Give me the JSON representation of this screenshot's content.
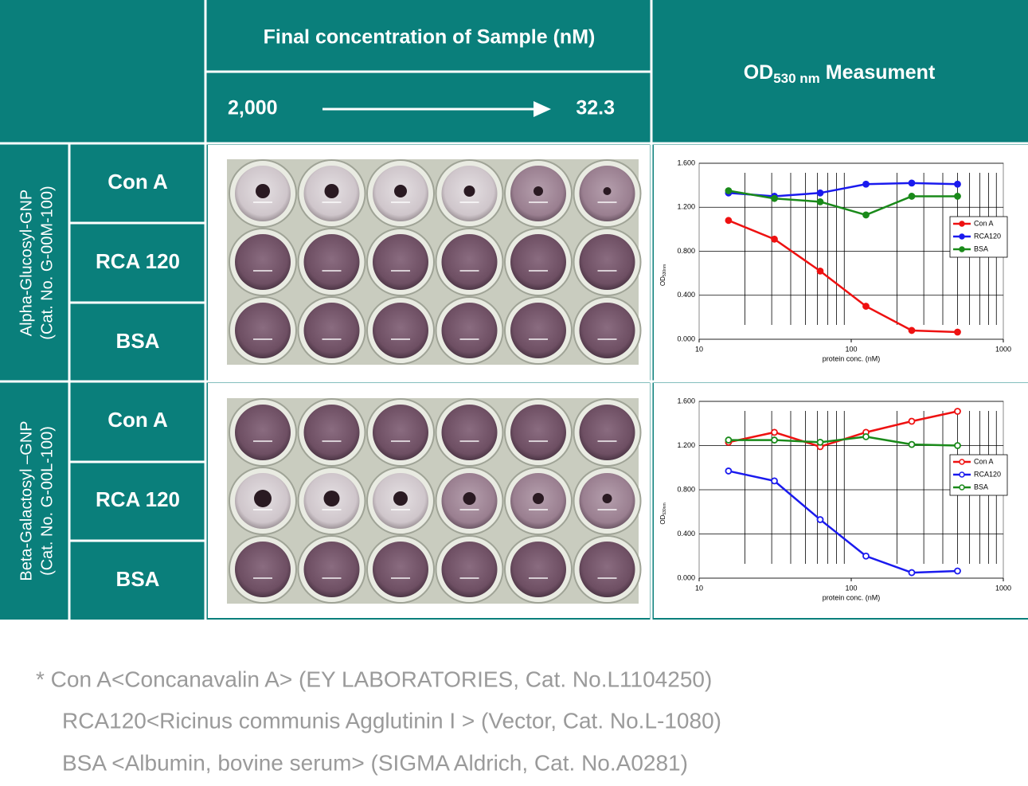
{
  "header": {
    "concentration_title": "Final concentration of Sample (nM)",
    "range_start": "2,000",
    "range_end": "32.3",
    "measurement_title": {
      "prefix": "OD",
      "subscript": "530 nm",
      "suffix": " Measument"
    }
  },
  "groups": [
    {
      "name": "Alpha-Glucosyl-GNP",
      "catalog": "(Cat. No. G-00M-100)",
      "rows": [
        "Con A",
        "RCA 120",
        "BSA"
      ]
    },
    {
      "name": "Beta-Galactosyl –GNP",
      "catalog": "(Cat. No. G-00L-100)",
      "rows": [
        "Con A",
        "RCA 120",
        "BSA"
      ]
    }
  ],
  "footnotes": [
    "* Con A<Concanavalin A> (EY LABORATORIES, Cat. No.L1104250)",
    "RCA120<Ricinus communis Agglutinin I > (Vector, Cat. No.L-1080)",
    "BSA <Albumin, bovine serum> (SIGMA Aldrich, Cat. No.A0281)"
  ],
  "chart_data": [
    {
      "type": "line",
      "x_label": "protein conc. (nM)",
      "y_label": {
        "prefix": "OD",
        "subscript": "530nm"
      },
      "x": [
        15.6,
        31.25,
        62.5,
        125,
        250,
        500
      ],
      "x_scale": "log",
      "xlim": [
        10,
        1000
      ],
      "xticks": [
        10,
        100,
        1000
      ],
      "ylim": [
        0,
        1.6
      ],
      "yticks": [
        {
          "value": 0,
          "label": "0.000"
        },
        {
          "value": 0.4,
          "label": "0.400"
        },
        {
          "value": 0.8,
          "label": "0.800"
        },
        {
          "value": 1.2,
          "label": "1.200"
        },
        {
          "value": 1.6,
          "label": "1.600"
        }
      ],
      "grid": true,
      "x_minor_grid": true,
      "legend": "right",
      "markers": "filled",
      "series": [
        {
          "name": "Con A",
          "color": "#ee1111",
          "values": [
            1.08,
            0.91,
            0.62,
            0.3,
            0.08,
            0.065
          ]
        },
        {
          "name": "RCA120",
          "color": "#1a1aee",
          "values": [
            1.33,
            1.3,
            1.33,
            1.41,
            1.42,
            1.41
          ]
        },
        {
          "name": "BSA",
          "color": "#1a8a1a",
          "values": [
            1.35,
            1.28,
            1.25,
            1.13,
            1.3,
            1.3
          ]
        }
      ]
    },
    {
      "type": "line",
      "x_label": "protein conc. (nM)",
      "y_label": {
        "prefix": "OD",
        "subscript": "530nm"
      },
      "x": [
        15.6,
        31.25,
        62.5,
        125,
        250,
        500
      ],
      "x_scale": "log",
      "xlim": [
        10,
        1000
      ],
      "xticks": [
        10,
        100,
        1000
      ],
      "ylim": [
        0,
        1.6
      ],
      "yticks": [
        {
          "value": 0,
          "label": "0.000"
        },
        {
          "value": 0.4,
          "label": "0.400"
        },
        {
          "value": 0.8,
          "label": "0.800"
        },
        {
          "value": 1.2,
          "label": "1.200"
        },
        {
          "value": 1.6,
          "label": "1.600"
        }
      ],
      "grid": true,
      "x_minor_grid": true,
      "legend": "right",
      "markers": "hollow",
      "series": [
        {
          "name": "Con A",
          "color": "#ee1111",
          "values": [
            1.23,
            1.32,
            1.19,
            1.32,
            1.42,
            1.51
          ]
        },
        {
          "name": "RCA120",
          "color": "#1a1aee",
          "values": [
            0.97,
            0.88,
            0.53,
            0.2,
            0.05,
            0.065
          ]
        },
        {
          "name": "BSA",
          "color": "#1a8a1a",
          "values": [
            1.25,
            1.25,
            1.23,
            1.28,
            1.21,
            1.2
          ]
        }
      ]
    }
  ]
}
